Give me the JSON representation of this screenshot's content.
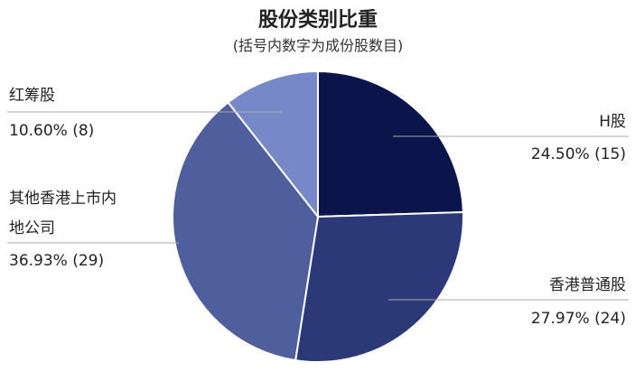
{
  "chart_data": {
    "type": "pie",
    "title": "股份类别比重",
    "subtitle": "(括号内数字为成份股数目)",
    "slices": [
      {
        "label": "H股",
        "value": 24.5,
        "value_text": "24.50% (15)",
        "count": 15,
        "color": "#0b154c"
      },
      {
        "label": "香港普通股",
        "value": 27.97,
        "value_text": "27.97% (24)",
        "count": 24,
        "color": "#2b3978"
      },
      {
        "label": "其他香港上市内地公司",
        "label_lines": [
          "其他香港上市内",
          "地公司"
        ],
        "value": 36.93,
        "value_text": "36.93% (29)",
        "count": 29,
        "color": "#4f5f9e"
      },
      {
        "label": "红筹股",
        "value": 10.6,
        "value_text": "10.60% (8)",
        "count": 8,
        "color": "#7788c8"
      }
    ]
  }
}
